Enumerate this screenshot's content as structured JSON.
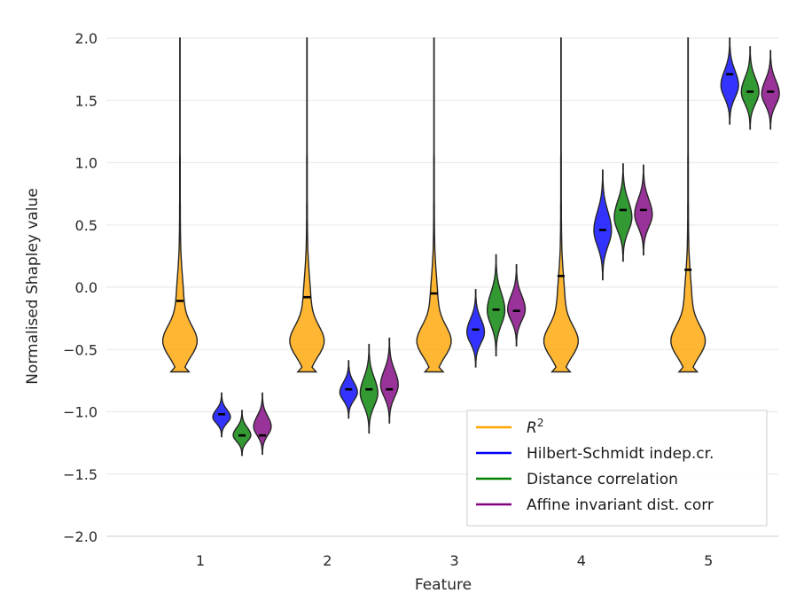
{
  "chart_data": {
    "type": "violin",
    "xlabel": "Feature",
    "ylabel": "Normalised Shapley value",
    "ylim": [
      -2.0,
      2.0
    ],
    "y_ticks": [
      "−2.0",
      "−1.5",
      "−1.0",
      "−0.5",
      "0.0",
      "0.5",
      "1.0",
      "1.5",
      "2.0"
    ],
    "y_tick_values": [
      -2.0,
      -1.5,
      -1.0,
      -0.5,
      0.0,
      0.5,
      1.0,
      1.5,
      2.0
    ],
    "categories": [
      "1",
      "2",
      "3",
      "4",
      "5"
    ],
    "grid": "horizontal",
    "legend_position": "lower-right",
    "legend_uses_math": true,
    "series": [
      {
        "name": "R",
        "superscript": "2",
        "color": "#ffa500",
        "violins": [
          {
            "min": -0.68,
            "max": 2.0,
            "median": -0.11,
            "max_halfwidth": 0.46
          },
          {
            "min": -0.68,
            "max": 2.0,
            "median": -0.08,
            "max_halfwidth": 0.46
          },
          {
            "min": -0.68,
            "max": 2.0,
            "median": -0.05,
            "max_halfwidth": 0.46
          },
          {
            "min": -0.68,
            "max": 2.0,
            "median": 0.09,
            "max_halfwidth": 0.46
          },
          {
            "min": -0.68,
            "max": 2.0,
            "median": 0.14,
            "max_halfwidth": 0.46
          }
        ]
      },
      {
        "name": "Hilbert-Schmidt indep.cr.",
        "color": "#0000ff",
        "violins": [
          {
            "min": -1.2,
            "max": -0.85,
            "median": -1.02,
            "max_halfwidth": 0.22
          },
          {
            "min": -1.05,
            "max": -0.59,
            "median": -0.82,
            "max_halfwidth": 0.22
          },
          {
            "min": -0.64,
            "max": -0.02,
            "median": -0.34,
            "max_halfwidth": 0.22
          },
          {
            "min": 0.06,
            "max": 0.94,
            "median": 0.46,
            "max_halfwidth": 0.22
          },
          {
            "min": 1.31,
            "max": 2.0,
            "median": 1.71,
            "max_halfwidth": 0.22
          }
        ]
      },
      {
        "name": "Distance correlation",
        "color": "#008000",
        "violins": [
          {
            "min": -1.35,
            "max": -0.99,
            "median": -1.19,
            "max_halfwidth": 0.22
          },
          {
            "min": -1.17,
            "max": -0.46,
            "median": -0.82,
            "max_halfwidth": 0.22
          },
          {
            "min": -0.55,
            "max": 0.26,
            "median": -0.18,
            "max_halfwidth": 0.22
          },
          {
            "min": 0.21,
            "max": 0.99,
            "median": 0.62,
            "max_halfwidth": 0.22
          },
          {
            "min": 1.27,
            "max": 1.93,
            "median": 1.57,
            "max_halfwidth": 0.22
          }
        ]
      },
      {
        "name": "Affine invariant dist. corr",
        "color": "#800080",
        "violins": [
          {
            "min": -1.34,
            "max": -0.85,
            "median": -1.19,
            "max_halfwidth": 0.22
          },
          {
            "min": -1.09,
            "max": -0.41,
            "median": -0.82,
            "max_halfwidth": 0.22
          },
          {
            "min": -0.47,
            "max": 0.18,
            "median": -0.19,
            "max_halfwidth": 0.22
          },
          {
            "min": 0.26,
            "max": 0.98,
            "median": 0.62,
            "max_halfwidth": 0.22
          },
          {
            "min": 1.27,
            "max": 1.9,
            "median": 1.57,
            "max_halfwidth": 0.22
          }
        ]
      }
    ]
  }
}
